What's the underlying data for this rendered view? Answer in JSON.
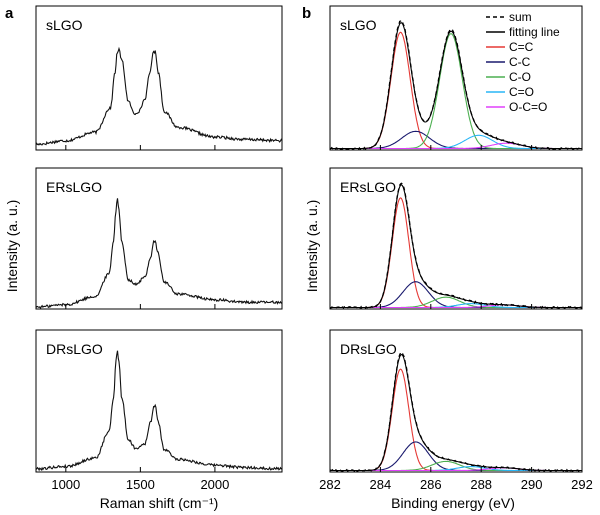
{
  "figure": {
    "panel_a_letter": "a",
    "panel_b_letter": "b",
    "ylabel": "Intensity (a. u.)"
  },
  "chart_data": [
    {
      "type": "line",
      "panel": "a",
      "xlabel": "Raman shift (cm⁻¹)",
      "xlim": [
        800,
        2450
      ],
      "xticks": [
        1000,
        1500,
        2000
      ],
      "ylabel": "Intensity (a. u.)",
      "grid": false,
      "subplots": [
        {
          "label": "sLGO",
          "points": [
            [
              800,
              0.03
            ],
            [
              1000,
              0.06
            ],
            [
              1200,
              0.13
            ],
            [
              1300,
              0.33
            ],
            [
              1330,
              0.62
            ],
            [
              1345,
              0.78
            ],
            [
              1355,
              0.81
            ],
            [
              1375,
              0.72
            ],
            [
              1420,
              0.38
            ],
            [
              1460,
              0.28
            ],
            [
              1490,
              0.3
            ],
            [
              1530,
              0.4
            ],
            [
              1565,
              0.62
            ],
            [
              1585,
              0.78
            ],
            [
              1600,
              0.79
            ],
            [
              1620,
              0.62
            ],
            [
              1660,
              0.3
            ],
            [
              1750,
              0.17
            ],
            [
              2000,
              0.09
            ],
            [
              2200,
              0.07
            ],
            [
              2450,
              0.06
            ]
          ]
        },
        {
          "label": "ERsLGO",
          "points": [
            [
              800,
              0.0
            ],
            [
              1000,
              0.02
            ],
            [
              1200,
              0.09
            ],
            [
              1290,
              0.28
            ],
            [
              1320,
              0.55
            ],
            [
              1335,
              0.8
            ],
            [
              1345,
              0.92
            ],
            [
              1355,
              0.82
            ],
            [
              1375,
              0.55
            ],
            [
              1420,
              0.23
            ],
            [
              1470,
              0.19
            ],
            [
              1530,
              0.25
            ],
            [
              1570,
              0.42
            ],
            [
              1590,
              0.55
            ],
            [
              1600,
              0.56
            ],
            [
              1615,
              0.46
            ],
            [
              1660,
              0.21
            ],
            [
              1750,
              0.11
            ],
            [
              2000,
              0.06
            ],
            [
              2200,
              0.04
            ],
            [
              2450,
              0.04
            ]
          ]
        },
        {
          "label": "DRsLGO",
          "points": [
            [
              800,
              0.01
            ],
            [
              1000,
              0.03
            ],
            [
              1200,
              0.1
            ],
            [
              1290,
              0.32
            ],
            [
              1320,
              0.6
            ],
            [
              1337,
              0.92
            ],
            [
              1345,
              1.0
            ],
            [
              1356,
              0.9
            ],
            [
              1375,
              0.6
            ],
            [
              1420,
              0.25
            ],
            [
              1470,
              0.18
            ],
            [
              1530,
              0.22
            ],
            [
              1570,
              0.4
            ],
            [
              1590,
              0.53
            ],
            [
              1600,
              0.54
            ],
            [
              1618,
              0.4
            ],
            [
              1660,
              0.17
            ],
            [
              1750,
              0.09
            ],
            [
              2000,
              0.04
            ],
            [
              2200,
              0.02
            ],
            [
              2450,
              0.01
            ]
          ]
        }
      ]
    },
    {
      "type": "line",
      "panel": "b",
      "xlabel": "Binding energy (eV)",
      "xlim": [
        282,
        292
      ],
      "xticks": [
        282,
        284,
        286,
        288,
        290,
        292
      ],
      "ylabel": "Intensity (a. u.)",
      "grid": false,
      "legend_position": "top-right",
      "legend": [
        {
          "name": "sum",
          "color": "#000000",
          "style": "dashed"
        },
        {
          "name": "fitting line",
          "color": "#000000",
          "style": "solid"
        },
        {
          "name": "C=C",
          "color": "#e53935",
          "style": "solid"
        },
        {
          "name": "C-C",
          "color": "#1a1a6e",
          "style": "solid"
        },
        {
          "name": "C-O",
          "color": "#4caf50",
          "style": "solid"
        },
        {
          "name": "C=O",
          "color": "#29b6f6",
          "style": "solid"
        },
        {
          "name": "O-C=O",
          "color": "#e040fb",
          "style": "solid"
        }
      ],
      "subplots": [
        {
          "label": "sLGO",
          "components": [
            {
              "name": "C=C",
              "center": 284.8,
              "amplitude": 0.88,
              "sigma": 0.38
            },
            {
              "name": "C-C",
              "center": 285.4,
              "amplitude": 0.13,
              "sigma": 0.55
            },
            {
              "name": "C-O",
              "center": 286.8,
              "amplitude": 0.87,
              "sigma": 0.45
            },
            {
              "name": "C=O",
              "center": 287.9,
              "amplitude": 0.1,
              "sigma": 0.55
            },
            {
              "name": "O-C=O",
              "center": 289.0,
              "amplitude": 0.04,
              "sigma": 0.6
            }
          ]
        },
        {
          "label": "ERsLGO",
          "components": [
            {
              "name": "C=C",
              "center": 284.8,
              "amplitude": 0.85,
              "sigma": 0.33
            },
            {
              "name": "C-C",
              "center": 285.4,
              "amplitude": 0.2,
              "sigma": 0.5
            },
            {
              "name": "C-O",
              "center": 286.6,
              "amplitude": 0.08,
              "sigma": 0.55
            },
            {
              "name": "C=O",
              "center": 287.6,
              "amplitude": 0.03,
              "sigma": 0.55
            },
            {
              "name": "O-C=O",
              "center": 288.9,
              "amplitude": 0.02,
              "sigma": 0.6
            }
          ]
        },
        {
          "label": "DRsLGO",
          "components": [
            {
              "name": "C=C",
              "center": 284.8,
              "amplitude": 0.78,
              "sigma": 0.33
            },
            {
              "name": "C-C",
              "center": 285.4,
              "amplitude": 0.22,
              "sigma": 0.5
            },
            {
              "name": "C-O",
              "center": 286.6,
              "amplitude": 0.07,
              "sigma": 0.55
            },
            {
              "name": "C=O",
              "center": 287.6,
              "amplitude": 0.03,
              "sigma": 0.55
            },
            {
              "name": "O-C=O",
              "center": 288.9,
              "amplitude": 0.02,
              "sigma": 0.6
            }
          ]
        }
      ]
    }
  ]
}
